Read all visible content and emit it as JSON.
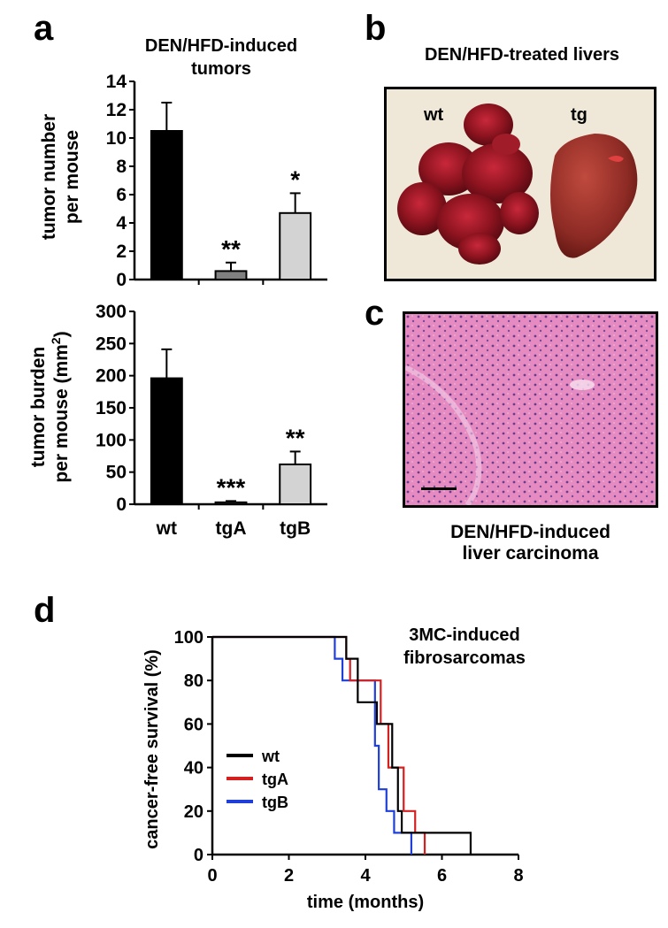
{
  "panels": {
    "a": "a",
    "b": "b",
    "c": "c",
    "d": "d"
  },
  "panel_b": {
    "title": "DEN/HFD-treated livers",
    "label_wt": "wt",
    "label_tg": "tg"
  },
  "panel_c": {
    "caption_line1": "DEN/HFD-induced",
    "caption_line2": "liver carcinoma"
  },
  "colors": {
    "wt": "#000000",
    "tgA": "#808080",
    "tgB": "#d3d3d3",
    "km_wt": "#000000",
    "km_tgA": "#d42020",
    "km_tgB": "#1f3fd8",
    "tissue": "#e07fb9"
  },
  "chart_data": [
    {
      "type": "bar",
      "title_line1": "DEN/HFD-induced",
      "title_line2": "tumors",
      "ylabel_line1": "tumor number",
      "ylabel_line2": "per mouse",
      "categories": [
        "wt",
        "tgA",
        "tgB"
      ],
      "values": [
        10.5,
        0.6,
        4.7
      ],
      "errors": [
        2.0,
        0.6,
        1.4
      ],
      "significance": [
        "",
        "**",
        "*"
      ],
      "ylim": [
        0,
        14
      ],
      "yticks": [
        "0",
        "2",
        "4",
        "6",
        "8",
        "10",
        "12",
        "14"
      ],
      "ytick_values": [
        0,
        2,
        4,
        6,
        8,
        10,
        12,
        14
      ]
    },
    {
      "type": "bar",
      "ylabel_line1": "tumor burden",
      "ylabel_line2": "per mouse (mm",
      "ylabel_sup": "2",
      "ylabel_end": ")",
      "categories": [
        "wt",
        "tgA",
        "tgB"
      ],
      "values": [
        196,
        3,
        62
      ],
      "errors": [
        45,
        2,
        20
      ],
      "significance": [
        "",
        "***",
        "**"
      ],
      "ylim": [
        0,
        300
      ],
      "yticks": [
        "0",
        "50",
        "100",
        "150",
        "200",
        "250",
        "300"
      ],
      "ytick_values": [
        0,
        50,
        100,
        150,
        200,
        250,
        300
      ]
    },
    {
      "type": "line",
      "subtype": "kaplan-meier",
      "title_line1": "3MC-induced",
      "title_line2": "fibrosarcomas",
      "xlabel": "time (months)",
      "ylabel": "cancer-free survival (%)",
      "xlim": [
        0,
        8
      ],
      "ylim": [
        0,
        100
      ],
      "xticks": [
        "0",
        "2",
        "4",
        "6",
        "8"
      ],
      "xtick_values": [
        0,
        2,
        4,
        6,
        8
      ],
      "yticks": [
        "0",
        "20",
        "40",
        "60",
        "80",
        "100"
      ],
      "ytick_values": [
        0,
        20,
        40,
        60,
        80,
        100
      ],
      "legend_position": "lower-left",
      "series": [
        {
          "name": "wt",
          "key": "km_wt",
          "x": [
            0,
            3.5,
            3.8,
            4.3,
            4.7,
            4.85,
            4.95,
            6.75
          ],
          "y": [
            100,
            90,
            70,
            60,
            40,
            20,
            10,
            0
          ]
        },
        {
          "name": "tgA",
          "key": "km_tgA",
          "x": [
            0,
            3.5,
            3.6,
            4.4,
            4.6,
            5.0,
            5.3,
            5.55
          ],
          "y": [
            100,
            90,
            80,
            60,
            40,
            20,
            10,
            0
          ]
        },
        {
          "name": "tgB",
          "key": "km_tgB",
          "x": [
            0,
            3.2,
            3.4,
            4.25,
            4.35,
            4.55,
            4.75,
            5.2
          ],
          "y": [
            100,
            90,
            80,
            50,
            30,
            20,
            10,
            0
          ]
        }
      ]
    }
  ]
}
